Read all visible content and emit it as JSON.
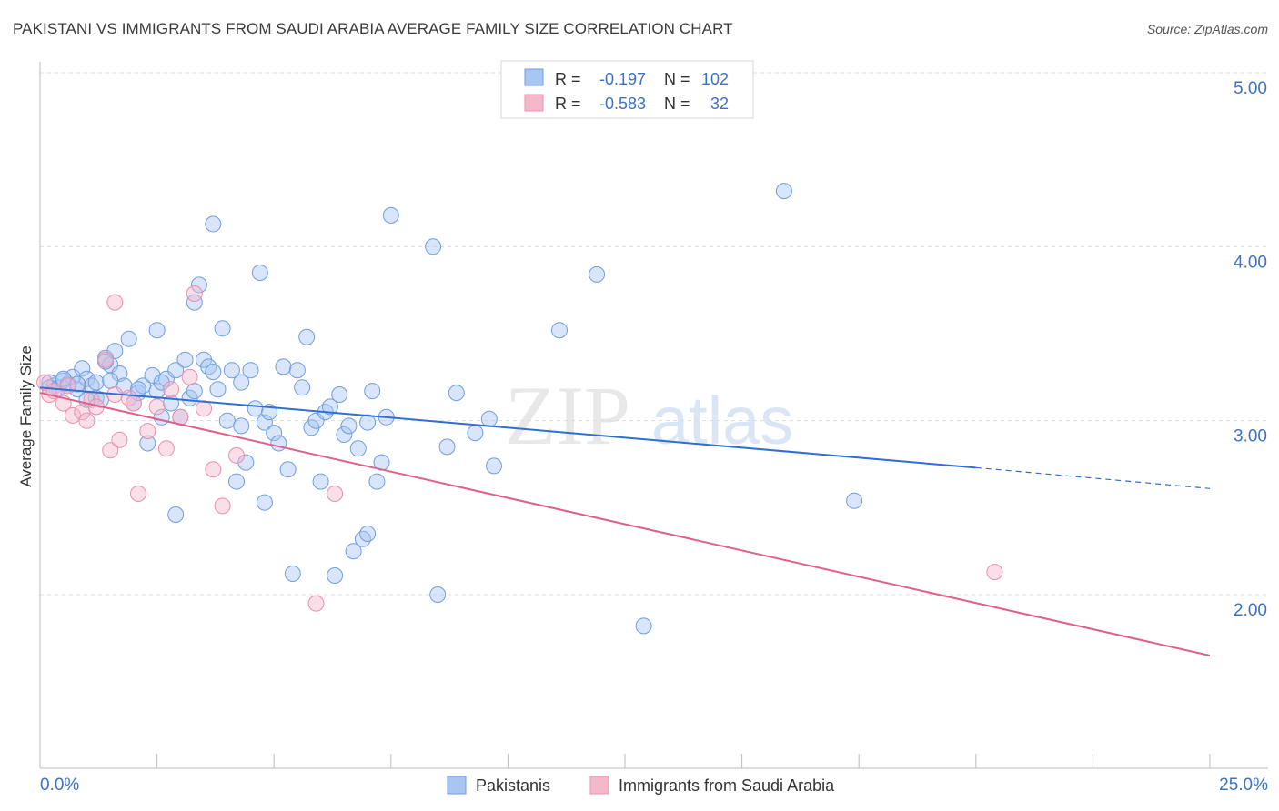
{
  "header": {
    "title": "PAKISTANI VS IMMIGRANTS FROM SAUDI ARABIA AVERAGE FAMILY SIZE CORRELATION CHART",
    "source": "Source: ZipAtlas.com"
  },
  "watermark": {
    "zip": "ZIP",
    "atlas": "atlas"
  },
  "legend_top": [
    {
      "r_label": "R =",
      "r_value": "-0.197",
      "n_label": "N =",
      "n_value": "102",
      "color": "#a9c6f3"
    },
    {
      "r_label": "R =",
      "r_value": "-0.583",
      "n_label": "N =",
      "n_value": "32",
      "color": "#f5b8cb"
    }
  ],
  "chart_data": {
    "type": "scatter",
    "title": "PAKISTANI VS IMMIGRANTS FROM SAUDI ARABIA AVERAGE FAMILY SIZE CORRELATION CHART",
    "xlabel": "",
    "ylabel": "Average Family Size",
    "xlim": [
      0,
      25
    ],
    "ylim": [
      1.1,
      5.1
    ],
    "x_tick_labels": {
      "min": "0.0%",
      "max": "25.0%"
    },
    "y_ticks": [
      5.0,
      4.0,
      3.0,
      2.0
    ],
    "y_tick_labels": [
      "5.00",
      "4.00",
      "3.00",
      "2.00"
    ],
    "grid": true,
    "series": [
      {
        "name": "Pakistanis",
        "color": "#a9c6f3",
        "stroke": "#6f9ee0",
        "trend": {
          "x0": 0.0,
          "y0": 3.19,
          "x1": 20.0,
          "y1": 2.73,
          "dash_to_x": 25.0,
          "dash_to_y": 2.61,
          "color": "#2f6fd0"
        },
        "points": [
          [
            0.2,
            3.22
          ],
          [
            0.3,
            3.2
          ],
          [
            0.4,
            3.19
          ],
          [
            0.5,
            3.23
          ],
          [
            0.6,
            3.21
          ],
          [
            0.7,
            3.25
          ],
          [
            0.8,
            3.18
          ],
          [
            0.9,
            3.3
          ],
          [
            1.0,
            3.24
          ],
          [
            1.1,
            3.2
          ],
          [
            1.2,
            3.13
          ],
          [
            1.3,
            3.12
          ],
          [
            1.4,
            3.36
          ],
          [
            1.5,
            3.32
          ],
          [
            1.6,
            3.4
          ],
          [
            1.7,
            3.27
          ],
          [
            1.8,
            3.2
          ],
          [
            1.9,
            3.47
          ],
          [
            2.0,
            3.1
          ],
          [
            2.1,
            3.16
          ],
          [
            2.2,
            3.2
          ],
          [
            2.3,
            2.87
          ],
          [
            2.4,
            3.26
          ],
          [
            2.5,
            3.52
          ],
          [
            2.6,
            3.02
          ],
          [
            2.7,
            3.24
          ],
          [
            2.8,
            3.1
          ],
          [
            2.9,
            3.29
          ],
          [
            3.0,
            3.02
          ],
          [
            3.1,
            3.35
          ],
          [
            3.2,
            3.13
          ],
          [
            3.3,
            3.68
          ],
          [
            3.4,
            3.78
          ],
          [
            3.5,
            3.35
          ],
          [
            3.6,
            3.31
          ],
          [
            3.7,
            3.28
          ],
          [
            3.8,
            3.18
          ],
          [
            3.9,
            3.53
          ],
          [
            4.0,
            3.0
          ],
          [
            4.1,
            3.29
          ],
          [
            4.2,
            2.65
          ],
          [
            4.3,
            3.22
          ],
          [
            4.4,
            2.76
          ],
          [
            4.5,
            3.29
          ],
          [
            4.6,
            3.07
          ],
          [
            4.7,
            3.85
          ],
          [
            4.8,
            2.99
          ],
          [
            4.9,
            3.05
          ],
          [
            5.0,
            2.93
          ],
          [
            5.1,
            2.87
          ],
          [
            5.2,
            3.31
          ],
          [
            5.3,
            2.72
          ],
          [
            5.4,
            2.12
          ],
          [
            5.5,
            3.29
          ],
          [
            5.6,
            3.19
          ],
          [
            5.7,
            3.48
          ],
          [
            5.8,
            2.96
          ],
          [
            5.9,
            3.0
          ],
          [
            6.0,
            2.65
          ],
          [
            6.1,
            3.05
          ],
          [
            6.2,
            3.08
          ],
          [
            6.3,
            2.11
          ],
          [
            6.4,
            3.15
          ],
          [
            6.5,
            2.92
          ],
          [
            6.6,
            2.97
          ],
          [
            6.7,
            2.25
          ],
          [
            6.8,
            2.84
          ],
          [
            6.9,
            2.32
          ],
          [
            7.0,
            2.35
          ],
          [
            7.1,
            3.17
          ],
          [
            7.2,
            2.65
          ],
          [
            7.3,
            2.76
          ],
          [
            7.4,
            3.02
          ],
          [
            7.5,
            4.18
          ],
          [
            4.3,
            2.97
          ],
          [
            2.9,
            2.46
          ],
          [
            3.7,
            4.13
          ],
          [
            3.3,
            3.17
          ],
          [
            1.4,
            3.34
          ],
          [
            0.5,
            3.24
          ],
          [
            2.5,
            3.17
          ],
          [
            4.8,
            2.53
          ],
          [
            8.4,
            4.0
          ],
          [
            9.3,
            2.93
          ],
          [
            11.9,
            3.84
          ],
          [
            11.1,
            3.52
          ],
          [
            12.9,
            1.82
          ],
          [
            15.9,
            4.32
          ],
          [
            17.4,
            2.54
          ],
          [
            8.9,
            3.16
          ],
          [
            8.7,
            2.85
          ],
          [
            9.6,
            3.01
          ],
          [
            9.7,
            2.74
          ],
          [
            8.5,
            2.0
          ],
          [
            7.0,
            2.99
          ],
          [
            2.1,
            3.18
          ],
          [
            1.0,
            3.12
          ],
          [
            0.2,
            3.19
          ],
          [
            1.2,
            3.22
          ],
          [
            2.6,
            3.22
          ],
          [
            1.5,
            3.23
          ],
          [
            0.8,
            3.21
          ]
        ]
      },
      {
        "name": "Immigrants from Saudi Arabia",
        "color": "#f5b8cb",
        "stroke": "#ec8fab",
        "trend": {
          "x0": 0.0,
          "y0": 3.16,
          "x1": 25.0,
          "y1": 1.65,
          "color": "#e0608c"
        },
        "points": [
          [
            0.1,
            3.22
          ],
          [
            0.2,
            3.15
          ],
          [
            0.3,
            3.17
          ],
          [
            0.5,
            3.1
          ],
          [
            0.6,
            3.2
          ],
          [
            0.7,
            3.03
          ],
          [
            0.9,
            3.05
          ],
          [
            1.0,
            3.0
          ],
          [
            1.1,
            3.12
          ],
          [
            1.2,
            3.08
          ],
          [
            1.4,
            3.35
          ],
          [
            1.5,
            2.83
          ],
          [
            1.6,
            3.15
          ],
          [
            1.7,
            2.89
          ],
          [
            1.9,
            3.13
          ],
          [
            2.0,
            3.1
          ],
          [
            2.1,
            2.58
          ],
          [
            2.3,
            2.94
          ],
          [
            2.5,
            3.08
          ],
          [
            2.7,
            2.84
          ],
          [
            2.8,
            3.18
          ],
          [
            3.0,
            3.02
          ],
          [
            3.2,
            3.25
          ],
          [
            3.3,
            3.73
          ],
          [
            3.5,
            3.07
          ],
          [
            3.7,
            2.72
          ],
          [
            3.9,
            2.51
          ],
          [
            4.2,
            2.8
          ],
          [
            5.9,
            1.95
          ],
          [
            6.3,
            2.58
          ],
          [
            20.4,
            2.13
          ],
          [
            1.6,
            3.68
          ]
        ]
      }
    ],
    "legend": [
      "Pakistanis",
      "Immigrants from Saudi Arabia"
    ]
  }
}
